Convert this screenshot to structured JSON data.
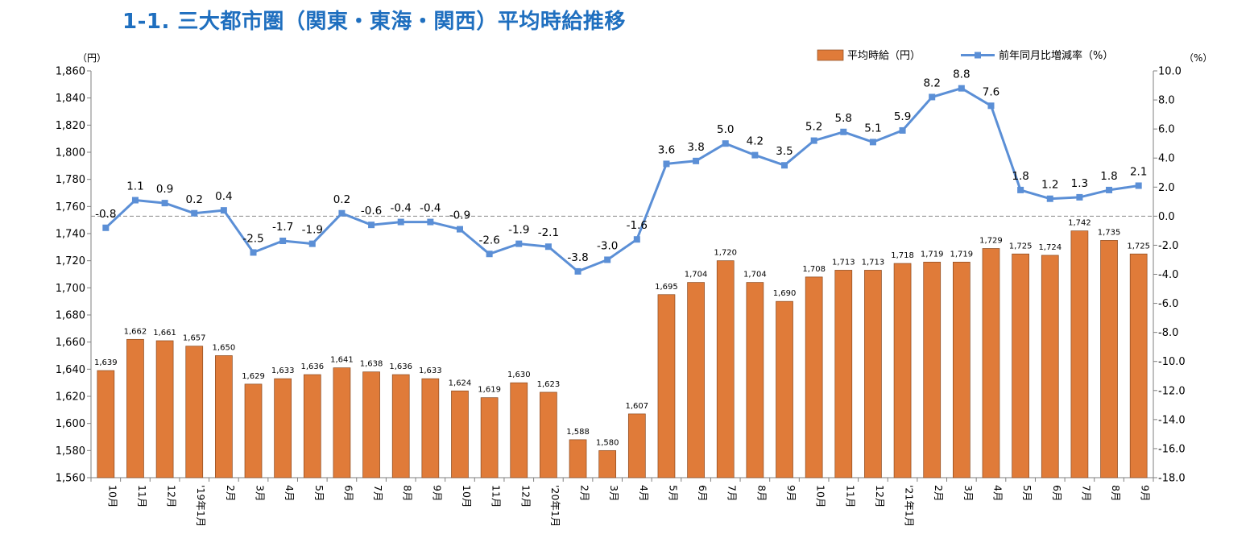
{
  "title": "1-1. 三大都市圏（関東・東海・関西）平均時給推移",
  "chart_data": {
    "type": "bar+line",
    "title": "1-1. 三大都市圏（関東・東海・関西）平均時給推移",
    "left_axis": {
      "unit": "（円）",
      "min": 1560,
      "max": 1860,
      "step": 20
    },
    "right_axis": {
      "unit": "（%）",
      "min": -18.0,
      "max": 10.0,
      "step": 2.0
    },
    "categories": [
      "10月",
      "11月",
      "12月",
      "'19年1月",
      "2月",
      "3月",
      "4月",
      "5月",
      "6月",
      "7月",
      "8月",
      "9月",
      "10月",
      "11月",
      "12月",
      "'20年1月",
      "2月",
      "3月",
      "4月",
      "5月",
      "6月",
      "7月",
      "8月",
      "9月",
      "10月",
      "11月",
      "12月",
      "'21年1月",
      "2月",
      "3月",
      "4月",
      "5月",
      "6月",
      "7月",
      "8月",
      "9月"
    ],
    "series": [
      {
        "name": "平均時給（円）",
        "type": "bar",
        "axis": "left",
        "color": "#e07b39",
        "values": [
          1639,
          1662,
          1661,
          1657,
          1650,
          1629,
          1633,
          1636,
          1641,
          1638,
          1636,
          1633,
          1624,
          1619,
          1630,
          1623,
          1588,
          1580,
          1607,
          1695,
          1704,
          1720,
          1704,
          1690,
          1708,
          1713,
          1713,
          1718,
          1719,
          1719,
          1729,
          1725,
          1724,
          1742,
          1735,
          1725
        ]
      },
      {
        "name": "前年同月比増減率（%）",
        "type": "line",
        "axis": "right",
        "color": "#5b8fd6",
        "values": [
          -0.8,
          1.1,
          0.9,
          0.2,
          0.4,
          -2.5,
          -1.7,
          -1.9,
          0.2,
          -0.6,
          -0.4,
          -0.4,
          -0.9,
          -2.6,
          -1.9,
          -2.1,
          -3.8,
          -3.0,
          -1.6,
          3.6,
          3.8,
          5.0,
          4.2,
          3.5,
          5.2,
          5.8,
          5.1,
          5.9,
          8.2,
          8.8,
          7.6,
          1.8,
          1.2,
          1.3,
          1.8,
          2.1
        ]
      }
    ],
    "grid": false,
    "zero_reference_line": true,
    "legend_position": "top-right"
  }
}
